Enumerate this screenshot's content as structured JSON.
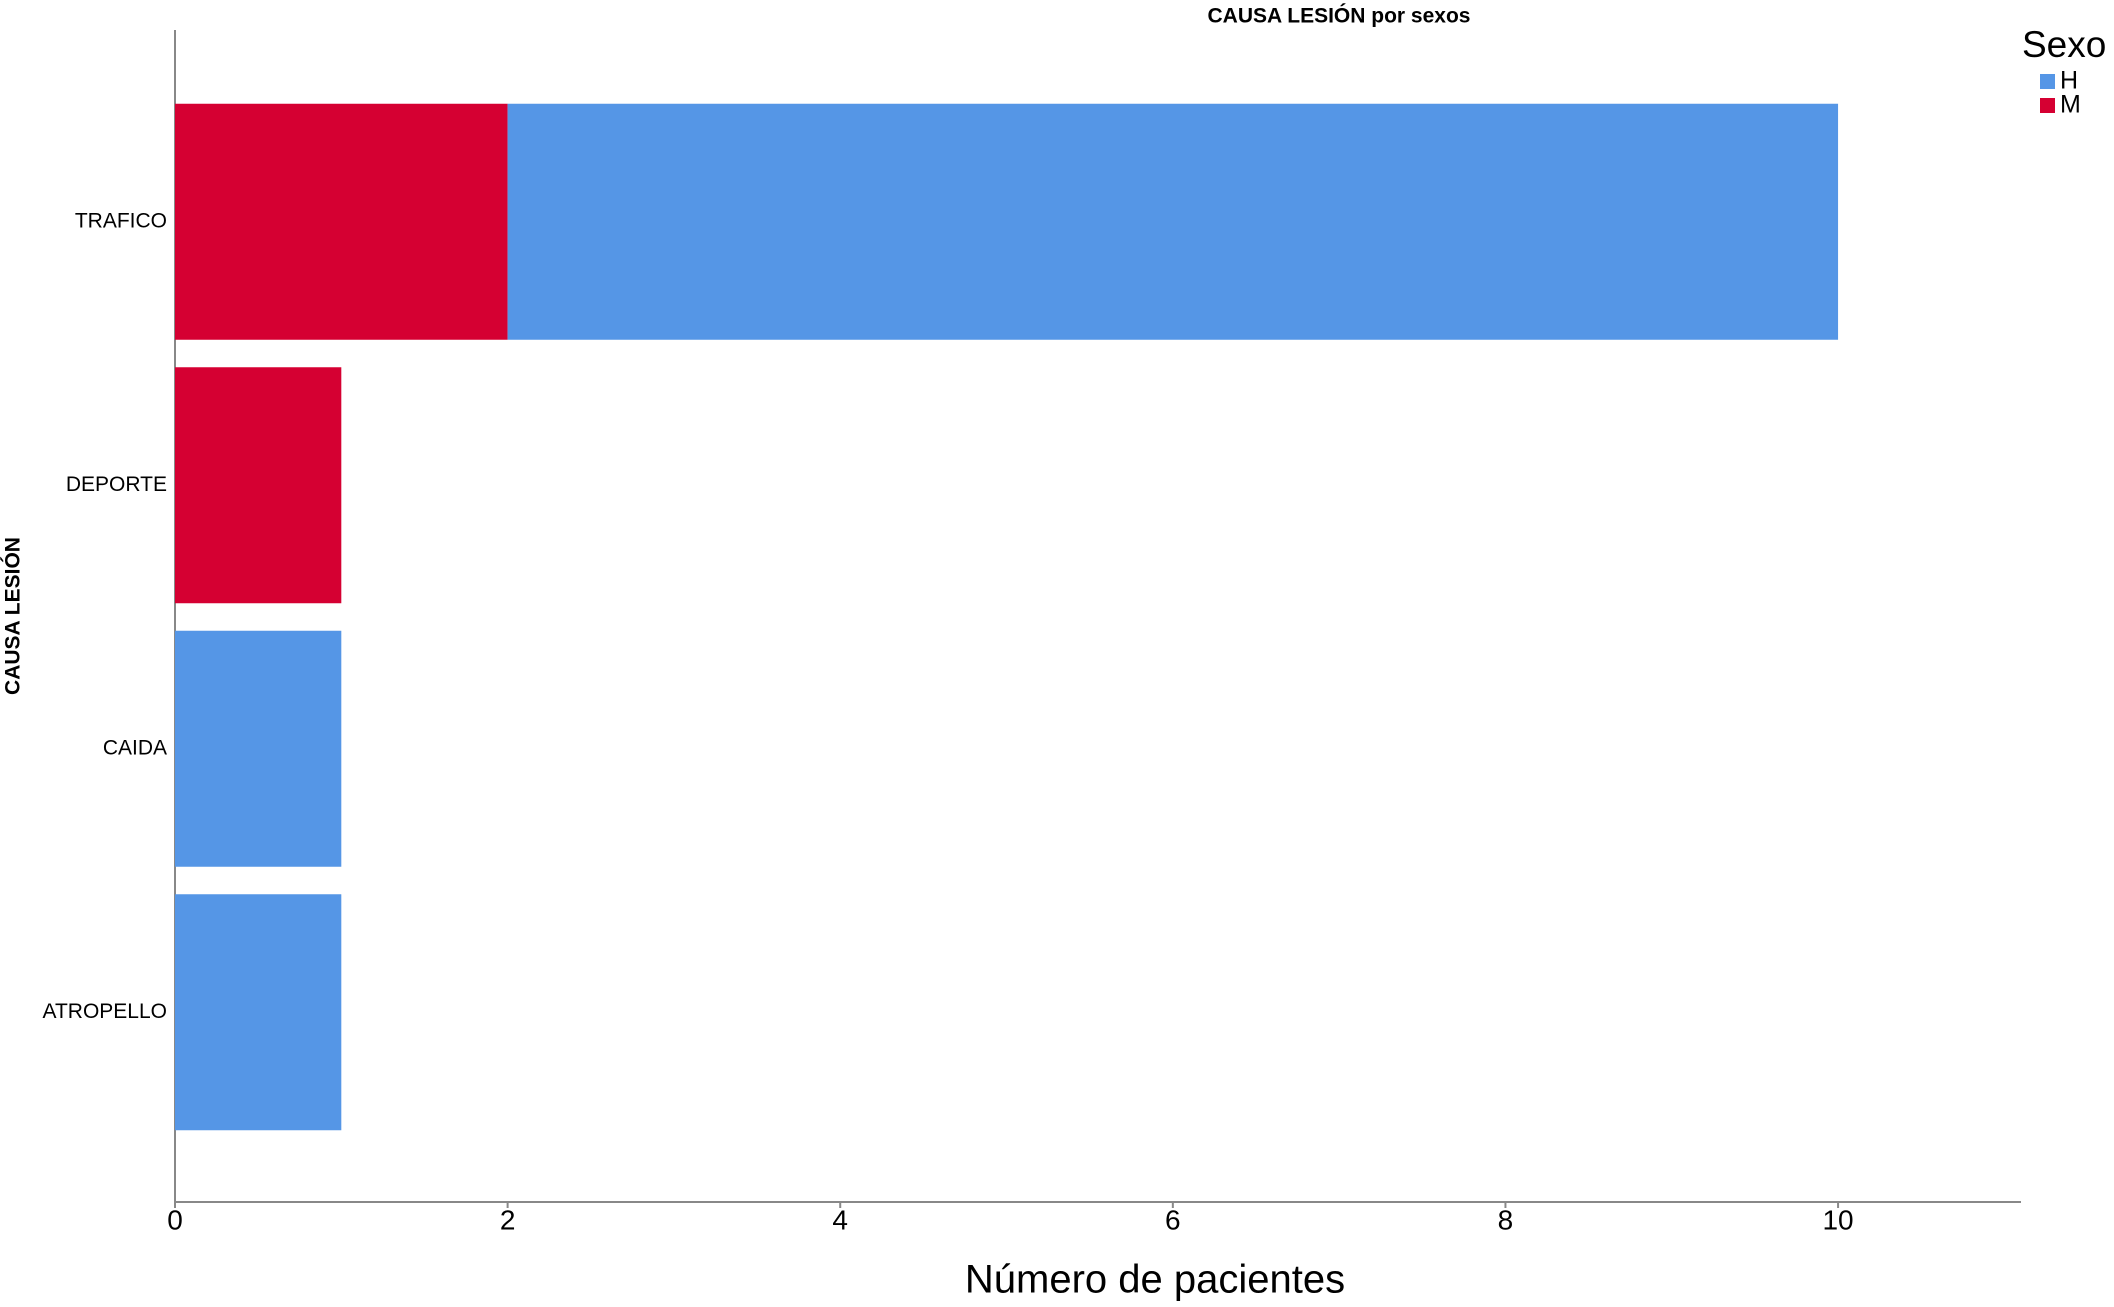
{
  "chart_data": {
    "type": "stacked-barh",
    "title": "CAUSA LESIÓN por sexos",
    "x_label": "Número de pacientes",
    "y_label": "CAUSA LESIÓN",
    "categories": [
      "TRAFICO",
      "DEPORTE",
      "CAIDA",
      "ATROPELLO"
    ],
    "series": [
      {
        "name": "H",
        "color": "#5596e6",
        "values": [
          8,
          0,
          1,
          1
        ]
      },
      {
        "name": "M",
        "color": "#d50032",
        "values": [
          2,
          1,
          0,
          0
        ]
      }
    ],
    "legend_title": "Sexo",
    "legend": "top-right",
    "xlim": [
      0,
      11.1
    ],
    "xticks": [
      0,
      2,
      4,
      6,
      8,
      10
    ],
    "grid": false
  }
}
